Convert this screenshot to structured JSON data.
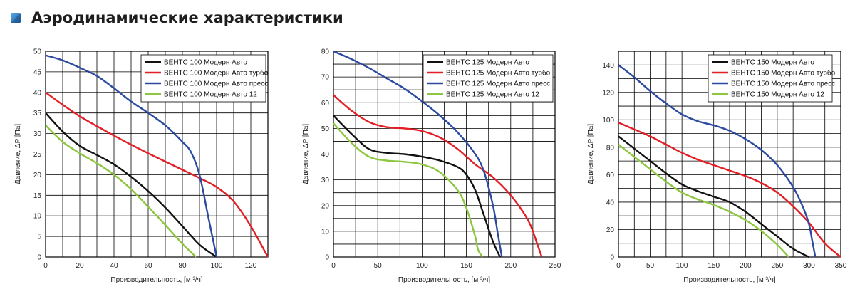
{
  "page": {
    "title": "Аэродинамические характеристики",
    "icon": "square-bullet-icon",
    "accent_color": "#1f6fb2"
  },
  "chart_data": [
    {
      "type": "line",
      "xlabel": "Производительность, [м ³/ч]",
      "ylabel": "Давление, ΔP [Па]",
      "xlim": [
        0,
        130
      ],
      "ylim": [
        0,
        50
      ],
      "xticks": [
        0,
        20,
        40,
        60,
        80,
        100,
        120
      ],
      "yticks": [
        0,
        5,
        10,
        15,
        20,
        25,
        30,
        35,
        40,
        45,
        50
      ],
      "x_grid_step": 10,
      "y_grid_step": 5,
      "grid": true,
      "legend_position": "top-right",
      "series": [
        {
          "name": "ВЕНТС 100 Модерн Авто",
          "color": "#111111",
          "x": [
            0,
            10,
            20,
            30,
            40,
            50,
            60,
            70,
            80,
            90,
            100
          ],
          "y": [
            35,
            30.5,
            27,
            24.8,
            22.5,
            19.5,
            16,
            12,
            7.5,
            3,
            0
          ]
        },
        {
          "name": "ВЕНТС 100 Модерн Авто турбо",
          "color": "#e31e24",
          "x": [
            0,
            10,
            20,
            30,
            40,
            50,
            60,
            70,
            80,
            90,
            100,
            110,
            120,
            130
          ],
          "y": [
            40,
            37,
            34.2,
            31.8,
            29.5,
            27.3,
            25.2,
            23.2,
            21.2,
            19.2,
            17,
            13.5,
            7.5,
            0
          ]
        },
        {
          "name": "ВЕНТС 100 Модерн Авто пресс",
          "color": "#2b4aa0",
          "x": [
            0,
            10,
            20,
            30,
            40,
            50,
            60,
            70,
            80,
            85,
            90,
            95,
            100
          ],
          "y": [
            49,
            47.8,
            46,
            44,
            41,
            37.8,
            35,
            32,
            28,
            25.5,
            20,
            10,
            0
          ]
        },
        {
          "name": "ВЕНТС 100 Модерн Авто 12",
          "color": "#8dc63f",
          "x": [
            0,
            10,
            20,
            30,
            40,
            50,
            60,
            70,
            80,
            88
          ],
          "y": [
            32,
            28,
            25.2,
            22.8,
            20,
            16.5,
            12.2,
            7.8,
            3.2,
            0
          ]
        }
      ]
    },
    {
      "type": "line",
      "xlabel": "Производительность, [м ³/ч]",
      "ylabel": "Давление, ΔP [Па]",
      "xlim": [
        0,
        250
      ],
      "ylim": [
        0,
        80
      ],
      "xticks": [
        0,
        50,
        100,
        150,
        200,
        250
      ],
      "yticks": [
        0,
        10,
        20,
        30,
        40,
        50,
        60,
        70,
        80
      ],
      "x_grid_step": 25,
      "y_grid_step": 5,
      "grid": true,
      "legend_position": "top-right",
      "series": [
        {
          "name": "ВЕНТС 125 Модерн Авто",
          "color": "#111111",
          "x": [
            0,
            20,
            40,
            60,
            80,
            100,
            120,
            140,
            150,
            160,
            170,
            180,
            188
          ],
          "y": [
            55,
            48,
            42,
            40.5,
            40,
            39,
            37.5,
            35,
            32,
            26,
            16,
            6,
            0
          ]
        },
        {
          "name": "ВЕНТС 125 Модерн Авто турбо",
          "color": "#e31e24",
          "x": [
            0,
            20,
            40,
            60,
            80,
            100,
            120,
            140,
            160,
            180,
            200,
            220,
            230,
            235
          ],
          "y": [
            63,
            57,
            52.5,
            50.5,
            50,
            49,
            46.5,
            42,
            36,
            31,
            24,
            14,
            5,
            0
          ]
        },
        {
          "name": "ВЕНТС 125 Модерн Авто пресс",
          "color": "#2b4aa0",
          "x": [
            0,
            20,
            40,
            60,
            80,
            100,
            120,
            140,
            160,
            170,
            180,
            185,
            190
          ],
          "y": [
            80,
            77,
            73.5,
            69.5,
            65.5,
            60.5,
            55,
            48.5,
            40,
            33,
            20,
            10,
            0
          ]
        },
        {
          "name": "ВЕНТС 125 Модерн Авто 12",
          "color": "#8dc63f",
          "x": [
            0,
            20,
            40,
            60,
            80,
            100,
            120,
            140,
            150,
            160,
            163,
            168
          ],
          "y": [
            52,
            44.5,
            39,
            37.5,
            37,
            36,
            33,
            26,
            19,
            8,
            3,
            0
          ]
        }
      ]
    },
    {
      "type": "line",
      "xlabel": "Производительность, [м ³/ч]",
      "ylabel": "Давление, ΔP [Па]",
      "xlim": [
        0,
        350
      ],
      "ylim": [
        0,
        150
      ],
      "xticks": [
        0,
        50,
        100,
        150,
        200,
        250,
        300,
        350
      ],
      "yticks": [
        0,
        20,
        40,
        60,
        80,
        100,
        120,
        140
      ],
      "x_grid_step": 25,
      "y_grid_step": 10,
      "grid": true,
      "legend_position": "top-right",
      "series": [
        {
          "name": "ВЕНТС 150 Модерн Авто",
          "color": "#111111",
          "x": [
            0,
            25,
            50,
            75,
            100,
            125,
            150,
            175,
            200,
            225,
            250,
            275,
            300
          ],
          "y": [
            88,
            79,
            70,
            61,
            53,
            48,
            44,
            40,
            33,
            24,
            15,
            6,
            0
          ]
        },
        {
          "name": "ВЕНТС 150 Модерн Авто турбо",
          "color": "#e31e24",
          "x": [
            0,
            25,
            50,
            75,
            100,
            125,
            150,
            175,
            200,
            225,
            250,
            275,
            300,
            325,
            350
          ],
          "y": [
            98,
            93,
            88,
            82,
            76,
            71,
            67,
            63,
            59,
            54,
            47,
            37,
            25,
            10,
            0
          ]
        },
        {
          "name": "ВЕНТС 150 Модерн Авто пресс",
          "color": "#2b4aa0",
          "x": [
            0,
            25,
            50,
            75,
            100,
            125,
            150,
            175,
            200,
            225,
            250,
            275,
            290,
            300,
            305,
            310
          ],
          "y": [
            140,
            131,
            121,
            112,
            104,
            99,
            96,
            92,
            86,
            78,
            67,
            51,
            37,
            24,
            12,
            0
          ]
        },
        {
          "name": "ВЕНТС 150 Модерн Авто 12",
          "color": "#8dc63f",
          "x": [
            0,
            25,
            50,
            75,
            100,
            125,
            150,
            175,
            200,
            225,
            250,
            268
          ],
          "y": [
            82,
            73,
            64,
            55,
            47,
            42,
            38,
            33,
            27,
            19,
            9,
            0
          ]
        }
      ]
    }
  ]
}
